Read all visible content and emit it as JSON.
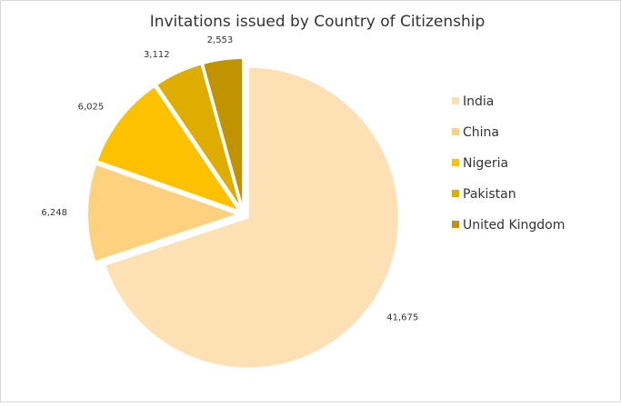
{
  "chart_data": {
    "type": "pie",
    "title": "Invitations issued by Country of Citizenship",
    "categories": [
      "India",
      "China",
      "Nigeria",
      "Pakistan",
      "United Kingdom"
    ],
    "values": [
      41675,
      6248,
      6025,
      3112,
      2553
    ],
    "value_labels": [
      "41,675",
      "6,248",
      "6,025",
      "3,112",
      "2,553"
    ],
    "colors": [
      "#fde0b4",
      "#fdd17e",
      "#fcc100",
      "#dfad00",
      "#c29300"
    ],
    "legend": "right"
  }
}
